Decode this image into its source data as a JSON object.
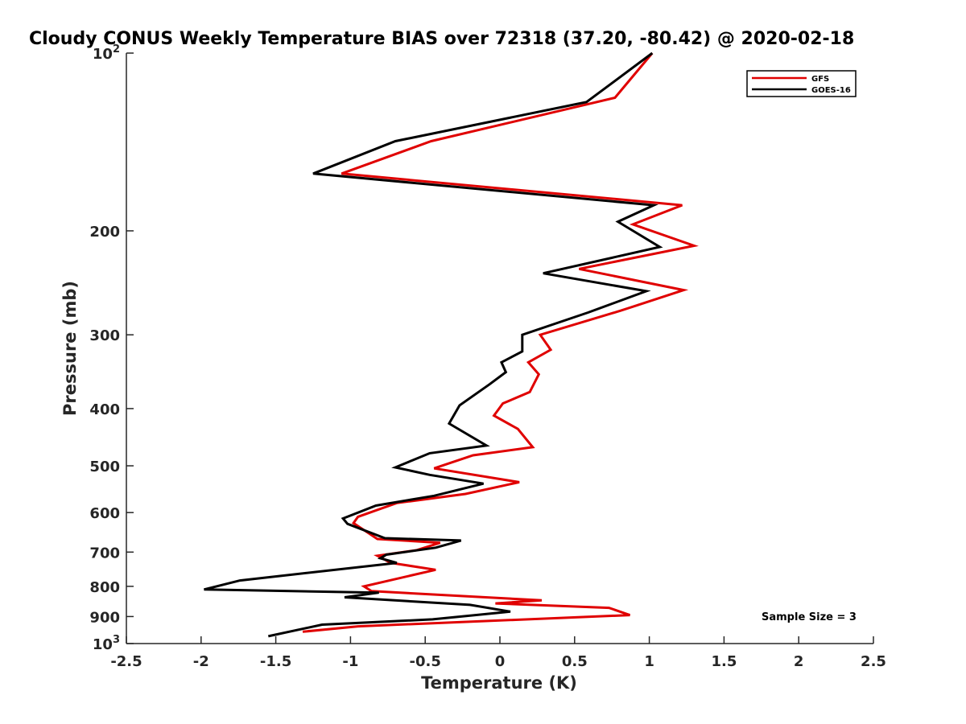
{
  "chart_data": {
    "type": "line",
    "title": "Cloudy CONUS Weekly Temperature BIAS over 72318 (37.20, -80.42) @ 2020-02-18",
    "xlabel": "Temperature (K)",
    "ylabel": "Pressure (mb)",
    "xlim": [
      -2.5,
      2.5
    ],
    "ylim": [
      100,
      1000
    ],
    "yscale": "log",
    "yreversed": true,
    "x_ticks": [
      "-2.5",
      "-2",
      "-1.5",
      "-1",
      "-0.5",
      "0",
      "0.5",
      "1",
      "1.5",
      "2",
      "2.5"
    ],
    "y_ticks": [
      {
        "value": 100,
        "base": "10",
        "exp": "2"
      },
      {
        "value": 200,
        "label": "200"
      },
      {
        "value": 300,
        "label": "300"
      },
      {
        "value": 400,
        "label": "400"
      },
      {
        "value": 500,
        "label": "500"
      },
      {
        "value": 600,
        "label": "600"
      },
      {
        "value": 700,
        "label": "700"
      },
      {
        "value": 800,
        "label": "800"
      },
      {
        "value": 900,
        "label": "900"
      },
      {
        "value": 1000,
        "base": "10",
        "exp": "3"
      }
    ],
    "legend_position": "top-right",
    "annotation": "Sample Size = 3",
    "series": [
      {
        "name": "GFS",
        "color": "#e00000",
        "x": [
          1.02,
          0.77,
          -0.46,
          -1.06,
          1.22,
          0.89,
          1.3,
          0.53,
          1.23,
          0.81,
          0.27,
          0.34,
          0.19,
          0.26,
          0.2,
          0.02,
          -0.04,
          0.12,
          0.22,
          -0.18,
          -0.44,
          0.13,
          -0.23,
          -0.69,
          -0.95,
          -0.98,
          -0.82,
          -0.4,
          -0.56,
          -0.82,
          -0.73,
          -0.43,
          -0.91,
          -0.86,
          0.28,
          -0.03,
          0.73,
          0.87,
          -0.95,
          -1.32
        ],
        "y": [
          100,
          119,
          141,
          160,
          181,
          195,
          212,
          232,
          252,
          273,
          300,
          318,
          334,
          350,
          375,
          392,
          411,
          433,
          465,
          480,
          505,
          533,
          558,
          578,
          610,
          625,
          665,
          675,
          695,
          710,
          730,
          750,
          800,
          815,
          845,
          855,
          870,
          895,
          935,
          955
        ]
      },
      {
        "name": "GOES-16",
        "color": "#000000",
        "x": [
          1.02,
          0.58,
          -0.7,
          -1.25,
          1.03,
          0.79,
          1.07,
          0.29,
          0.98,
          0.59,
          0.15,
          0.15,
          0.01,
          0.04,
          -0.07,
          -0.27,
          -0.34,
          -0.09,
          -0.47,
          -0.7,
          -0.47,
          -0.11,
          -0.44,
          -0.83,
          -1.05,
          -1.02,
          -0.77,
          -0.26,
          -0.43,
          -0.76,
          -0.8,
          -0.69,
          -1.74,
          -1.98,
          -0.81,
          -1.04,
          -0.2,
          0.07,
          -0.45,
          -1.19,
          -1.55
        ],
        "y": [
          100,
          121,
          141,
          160,
          181,
          193,
          213,
          236,
          253,
          275,
          300,
          320,
          334,
          347,
          364,
          395,
          424,
          462,
          476,
          503,
          518,
          536,
          562,
          584,
          614,
          627,
          663,
          669,
          688,
          707,
          717,
          730,
          782,
          810,
          820,
          835,
          860,
          883,
          910,
          929,
          972
        ]
      }
    ]
  }
}
